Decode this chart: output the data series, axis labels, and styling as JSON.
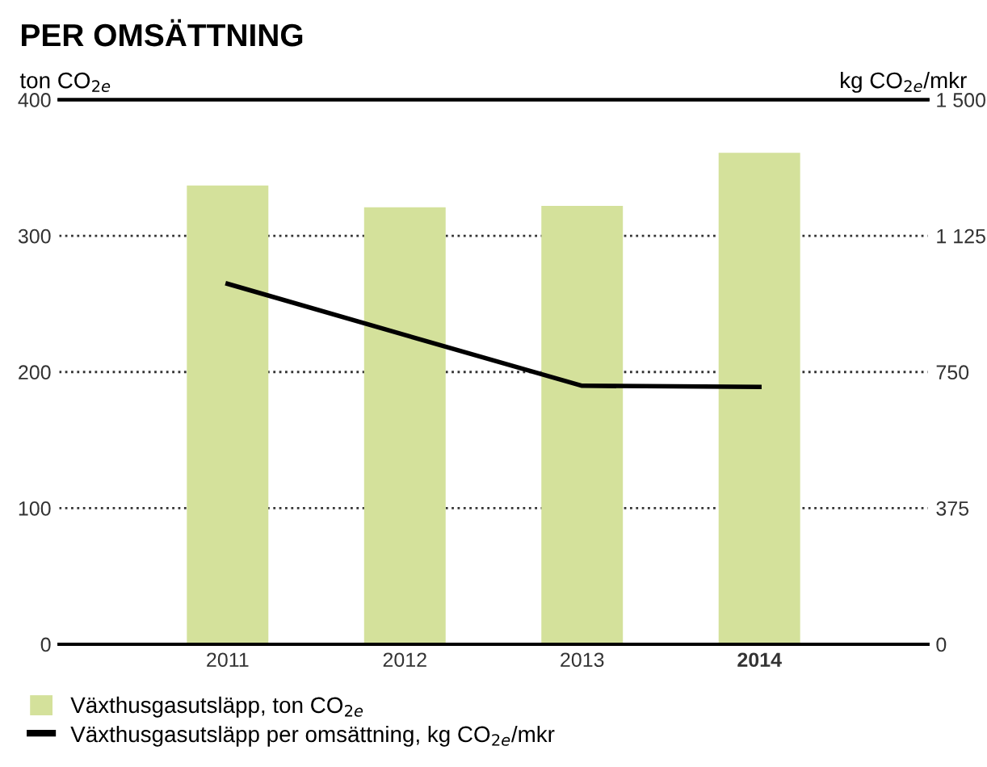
{
  "chart_data": {
    "type": "bar",
    "title": "PER OMSÄTTNING",
    "ylabel": "ton CO$_{2e}$",
    "y2label": "kg CO$_{2e}$/mkr",
    "categories": [
      "2011",
      "2012",
      "2013",
      "2014"
    ],
    "series": [
      {
        "name": "Växthusgasutsläpp, ton CO$_{2e}$",
        "color": "#d4e19b",
        "values": [
          337,
          321,
          322,
          361
        ]
      },
      {
        "name": "Växthusgasutsläpp per omsättning, kg CO$_{2e}$/mkr",
        "type": "line",
        "axis": "y2",
        "color": "#000000",
        "values": [
          993,
          852,
          712,
          709
        ]
      }
    ],
    "ylim": [
      0,
      400
    ],
    "yticks": [
      0,
      100,
      200,
      300,
      400
    ],
    "y2lim": [
      0,
      1500
    ],
    "y2ticks": [
      0,
      {
        "value": 375,
        "label": "375"
      },
      {
        "value": 750,
        "label": "750"
      },
      {
        "value": 1125,
        "label": "1 125"
      },
      {
        "value": 1500,
        "label": "1 500"
      }
    ],
    "grid": "y",
    "legend": "bottom left",
    "marker": "none",
    "line_style": "solid"
  }
}
